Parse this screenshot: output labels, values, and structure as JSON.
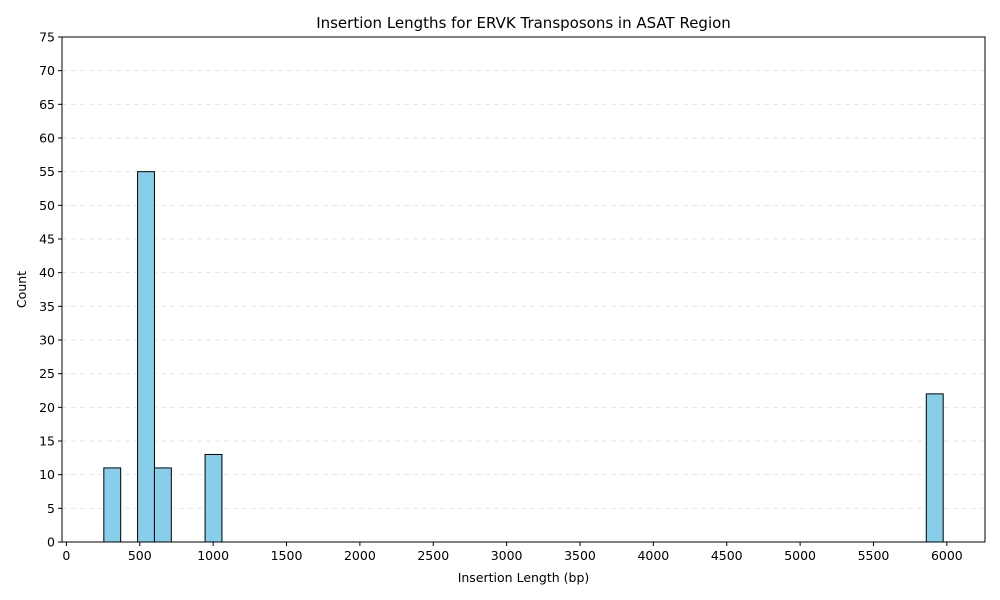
{
  "chart_data": {
    "type": "bar",
    "title": "Insertion Lengths for ERVK Transposons in ASAT Region",
    "xlabel": "Insertion Length (bp)",
    "ylabel": "Count",
    "xlim": [
      -30,
      6260
    ],
    "ylim": [
      0,
      75
    ],
    "x_ticks": [
      0,
      500,
      1000,
      1500,
      2000,
      2500,
      3000,
      3500,
      4000,
      4500,
      5000,
      5500,
      6000
    ],
    "y_ticks": [
      0,
      5,
      10,
      15,
      20,
      25,
      30,
      35,
      40,
      45,
      50,
      55,
      60,
      65,
      70,
      75
    ],
    "grid": "y-dashed",
    "bar_color": "#87CEEB",
    "edge_color": "#000000",
    "bars": [
      {
        "x0": 255,
        "x1": 370,
        "count": 11
      },
      {
        "x0": 485,
        "x1": 600,
        "count": 55
      },
      {
        "x0": 600,
        "x1": 715,
        "count": 11
      },
      {
        "x0": 945,
        "x1": 1060,
        "count": 13
      },
      {
        "x0": 5860,
        "x1": 5975,
        "count": 22
      }
    ]
  }
}
